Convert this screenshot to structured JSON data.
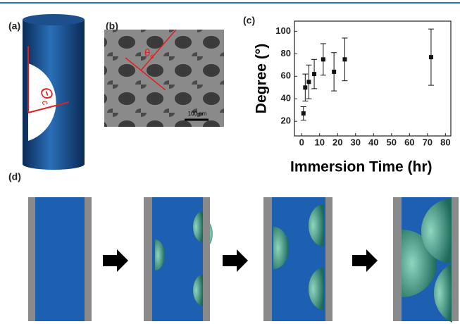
{
  "panels": {
    "a": {
      "label": "(a)",
      "angle_label": "Θ",
      "angle_subscript": "c"
    },
    "b": {
      "label": "(b)",
      "angle_label": "θ",
      "angle_subscript": "c",
      "scale_bar": "100 nm"
    },
    "c": {
      "label": "(c)"
    },
    "d": {
      "label": "(d)"
    }
  },
  "chart_data": {
    "type": "scatter",
    "ylabel": "Degree (°)",
    "xlabel": "Immersion Time (hr)",
    "xlim": [
      -4,
      83
    ],
    "ylim": [
      7,
      109
    ],
    "xticks": [
      0,
      10,
      20,
      30,
      40,
      50,
      60,
      70,
      80
    ],
    "yticks": [
      20,
      40,
      60,
      80,
      100
    ],
    "series": [
      {
        "color": "#111111",
        "x": [
          1,
          2,
          4,
          7,
          12,
          18,
          24,
          72
        ],
        "values": [
          27,
          50,
          55,
          62,
          75,
          64,
          75,
          77
        ],
        "errors": [
          6,
          12,
          15,
          13,
          14,
          17,
          19,
          25
        ]
      }
    ]
  }
}
